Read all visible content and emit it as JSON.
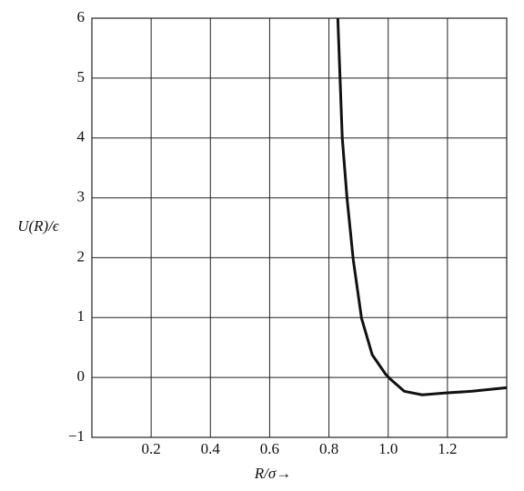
{
  "chart_data": {
    "type": "line",
    "x_label": "R/σ→",
    "y_label": "U(R)/ϵ",
    "x": [
      0.83,
      0.845,
      0.861,
      0.882,
      0.91,
      0.946,
      0.992,
      1.008,
      1.054,
      1.115,
      1.19,
      1.283,
      1.4
    ],
    "series": [
      {
        "color": "#111111",
        "values": [
          6,
          4.0,
          3.0,
          1.97,
          0.99,
          0.38,
          0.05,
          -0.03,
          -0.23,
          -0.29,
          -0.26,
          -0.23,
          -0.17
        ]
      }
    ],
    "xlim": [
      0,
      1.4
    ],
    "ylim": [
      -1,
      6
    ],
    "xticks": [
      0.2,
      0.4,
      0.6,
      0.8,
      {
        "value": 1,
        "label": "1.0"
      },
      1.2
    ],
    "yticks": [
      {
        "value": -1,
        "label": "−1"
      },
      0,
      1,
      2,
      3,
      4,
      5,
      6
    ],
    "grid": true
  }
}
